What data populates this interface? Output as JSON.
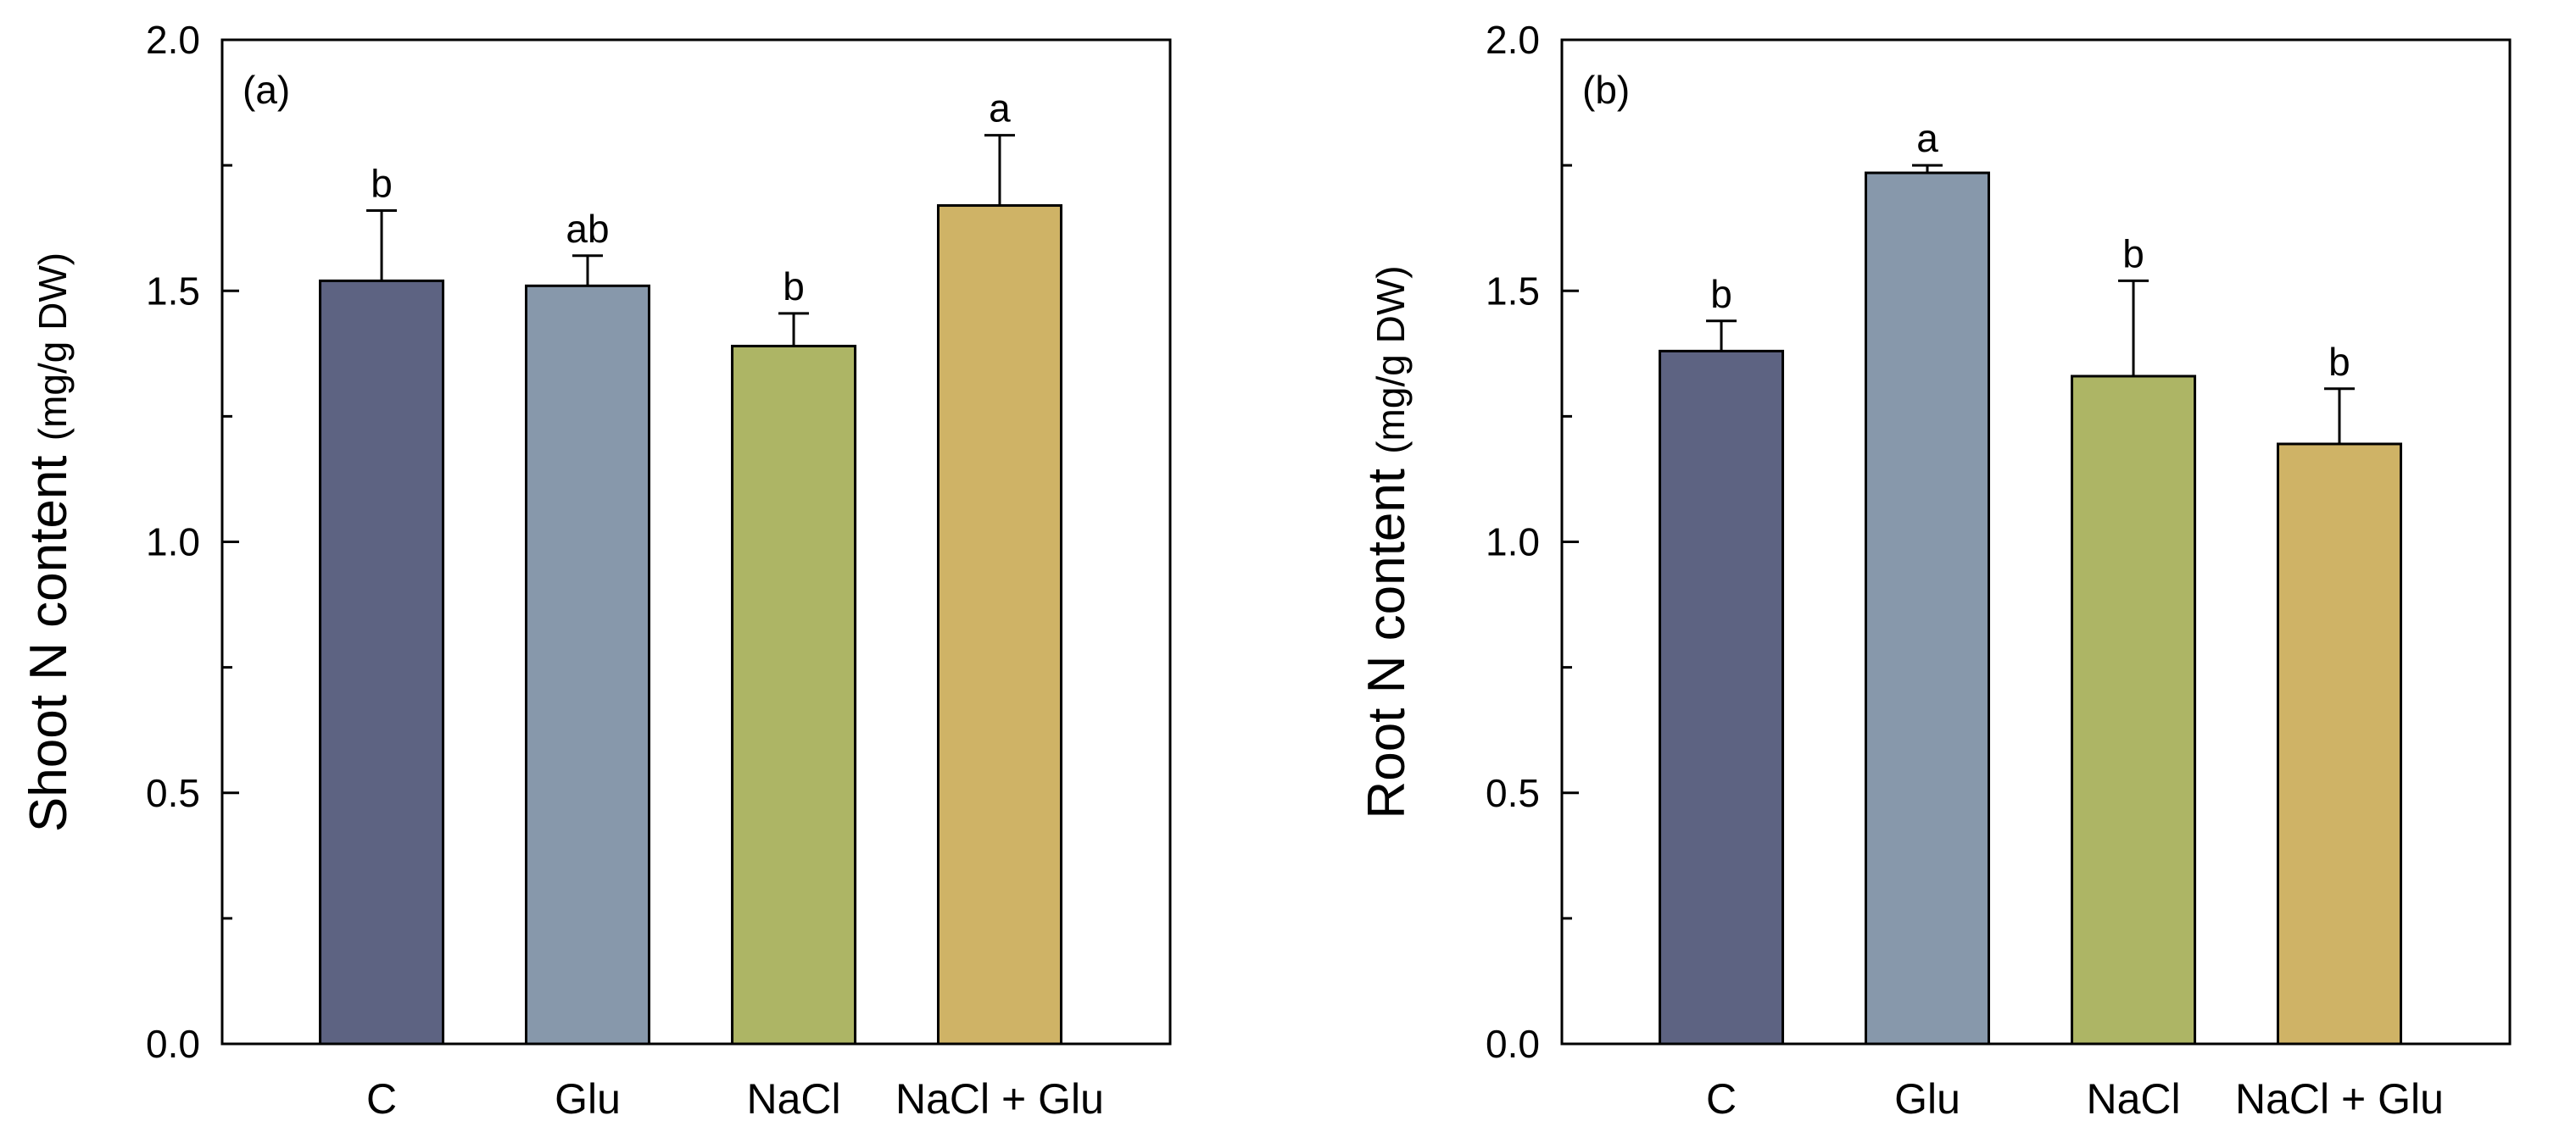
{
  "colors": {
    "C": "#5d6382",
    "Glu": "#8798ab",
    "NaCl": "#adb565",
    "NaCl + Glu": "#cfb366",
    "axis": "#000000"
  },
  "chart_data": [
    {
      "type": "bar",
      "panel_label": "(a)",
      "categories": [
        "C",
        "Glu",
        "NaCl",
        "NaCl + Glu"
      ],
      "values": [
        1.52,
        1.51,
        1.39,
        1.67
      ],
      "errors": [
        0.14,
        0.06,
        0.065,
        0.14
      ],
      "significance": [
        "b",
        "ab",
        "b",
        "a"
      ],
      "ylabel_main": "Shoot N content",
      "ylabel_unit": "(mg/g DW)",
      "xlabel": "",
      "ylim": [
        0,
        2.0
      ],
      "yticks": [
        "0.0",
        "0.5",
        "1.0",
        "1.5",
        "2.0"
      ],
      "grid": false
    },
    {
      "type": "bar",
      "panel_label": "(b)",
      "categories": [
        "C",
        "Glu",
        "NaCl",
        "NaCl + Glu"
      ],
      "values": [
        1.38,
        1.735,
        1.33,
        1.195
      ],
      "errors": [
        0.06,
        0.015,
        0.19,
        0.11
      ],
      "significance": [
        "b",
        "a",
        "b",
        "b"
      ],
      "ylabel_main": "Root N content",
      "ylabel_unit": "(mg/g DW)",
      "xlabel": "",
      "ylim": [
        0,
        2.0
      ],
      "yticks": [
        "0.0",
        "0.5",
        "1.0",
        "1.5",
        "2.0"
      ],
      "grid": false
    }
  ]
}
